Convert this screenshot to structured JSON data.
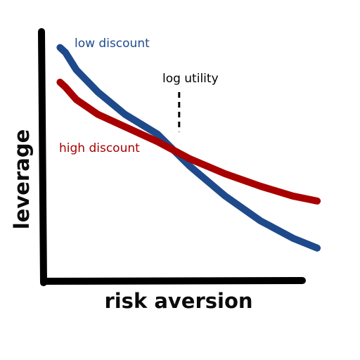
{
  "chart_data": {
    "type": "line",
    "title": "",
    "xlabel": "risk aversion",
    "ylabel": "leverage",
    "xlim": [
      0,
      10
    ],
    "ylim": [
      0,
      10
    ],
    "grid": false,
    "tick_labels": false,
    "legend": "inline labels",
    "series": [
      {
        "name": "low discount",
        "color": "#1e4a8c",
        "points": [
          [
            0.4,
            9.3
          ],
          [
            0.6,
            9.1
          ],
          [
            1.0,
            8.4
          ],
          [
            1.8,
            7.5
          ],
          [
            2.8,
            6.6
          ],
          [
            4.0,
            5.8
          ],
          [
            5.2,
            4.5
          ],
          [
            6.5,
            3.3
          ],
          [
            7.8,
            2.3
          ],
          [
            9.0,
            1.6
          ],
          [
            9.9,
            1.2
          ]
        ]
      },
      {
        "name": "high discount",
        "color": "#a80000",
        "points": [
          [
            0.4,
            7.9
          ],
          [
            0.6,
            7.7
          ],
          [
            1.0,
            7.2
          ],
          [
            1.8,
            6.6
          ],
          [
            2.8,
            6.1
          ],
          [
            4.0,
            5.5
          ],
          [
            5.2,
            4.8
          ],
          [
            6.5,
            4.2
          ],
          [
            7.8,
            3.7
          ],
          [
            9.0,
            3.3
          ],
          [
            9.9,
            3.1
          ]
        ]
      }
    ],
    "annotation": {
      "label": "log utility",
      "x": 4.8,
      "y_from": 5.9,
      "y_to": 7.5
    }
  }
}
